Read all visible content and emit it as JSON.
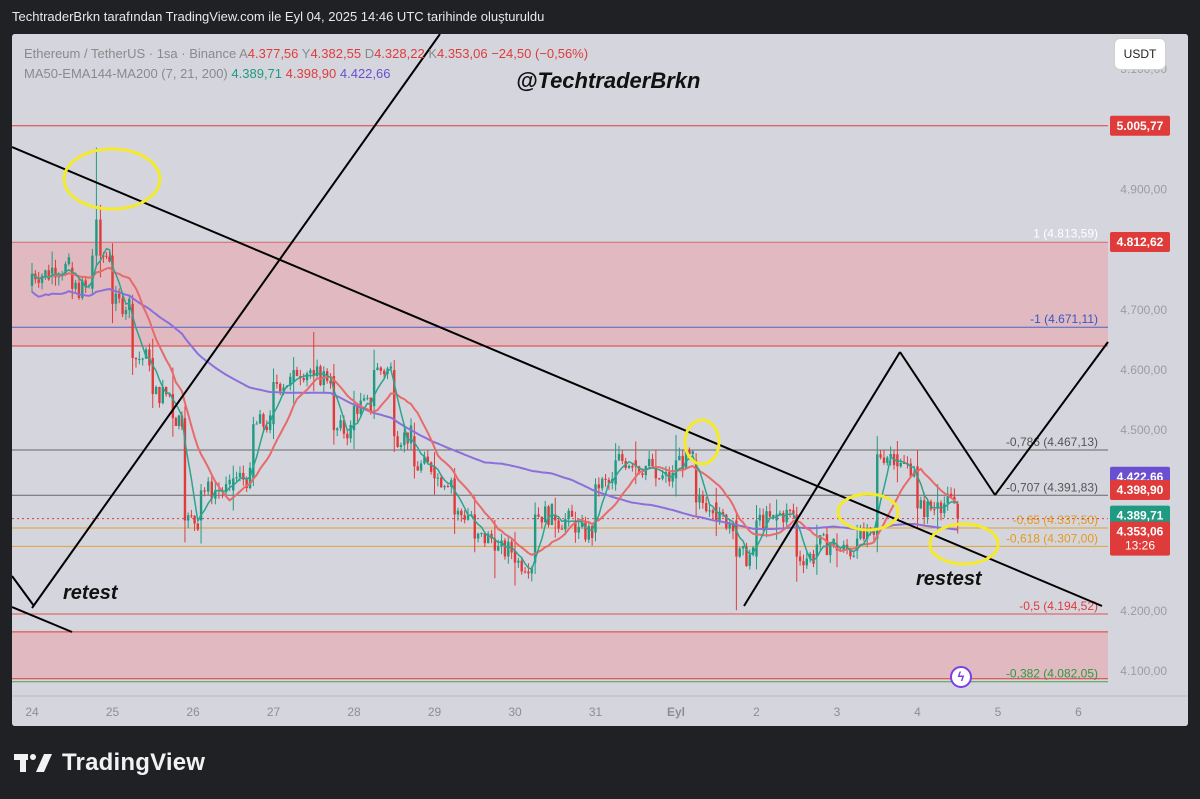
{
  "header": {
    "title": "TechtraderBrkn tarafından TradingView.com ile Eyl 04, 2025 14:46 UTC tarihinde oluşturuldu"
  },
  "legend": {
    "symbol": "Ethereum / TetherUS · 1sa · Binance",
    "ohlc": [
      {
        "k": "A",
        "v": "4.377,56"
      },
      {
        "k": "Y",
        "v": "4.382,55"
      },
      {
        "k": "D",
        "v": "4.328,22"
      },
      {
        "k": "K",
        "v": "4.353,06"
      }
    ],
    "change": "−24,50 (−0,56%)",
    "ma_label": "MA50-EMA144-MA200 (7, 21, 200)",
    "ma_values": [
      "4.389,71",
      "4.398,90",
      "4.422,66"
    ]
  },
  "currency_button": "USDT",
  "watermark": "@TechtraderBrkn",
  "footer": {
    "brand": "TradingView"
  },
  "colors": {
    "background": "#d5d6dd",
    "up": "#1f9a83",
    "down": "#e03b3b",
    "ma_fast": "#2aa48f",
    "ma_mid": "#e86a6a",
    "ma_slow": "#8c6fd8",
    "zone": "#e8a6ae",
    "annotation": "#f4ea2a"
  },
  "chart_data": {
    "type": "candlestick",
    "ylim": [
      4070,
      5150
    ],
    "y_ticks": [
      {
        "value": 5100,
        "label": "5.100,00"
      },
      {
        "value": 4900,
        "label": "4.900,00"
      },
      {
        "value": 4700,
        "label": "4.700,00"
      },
      {
        "value": 4600,
        "label": "4.600,00"
      },
      {
        "value": 4500,
        "label": "4.500,00"
      },
      {
        "value": 4300,
        "label": "4.300,00"
      },
      {
        "value": 4200,
        "label": "4.200,00"
      },
      {
        "value": 4100,
        "label": "4.100,00"
      }
    ],
    "x_ticks": [
      {
        "day": 0,
        "label": "24"
      },
      {
        "day": 1,
        "label": "25"
      },
      {
        "day": 2,
        "label": "26"
      },
      {
        "day": 3,
        "label": "27"
      },
      {
        "day": 4,
        "label": "28"
      },
      {
        "day": 5,
        "label": "29"
      },
      {
        "day": 6,
        "label": "30"
      },
      {
        "day": 7,
        "label": "31"
      },
      {
        "day": 8,
        "label": "Eyl"
      },
      {
        "day": 9,
        "label": "2"
      },
      {
        "day": 10,
        "label": "3"
      },
      {
        "day": 11,
        "label": "4"
      },
      {
        "day": 12,
        "label": "5"
      },
      {
        "day": 13,
        "label": "6"
      }
    ],
    "price_badges": [
      {
        "value": 5005.77,
        "label": "5.005,77",
        "color": "#e03b3b"
      },
      {
        "value": 4812.62,
        "label": "4.812,62",
        "color": "#e03b3b"
      },
      {
        "value": 4422.66,
        "label": "4.422,66",
        "color": "#6a4fd1"
      },
      {
        "value": 4398.9,
        "label": "4.398,90",
        "color": "#e03b3b"
      },
      {
        "value": 4389.71,
        "label": "4.389,71",
        "color": "#1f9a83"
      },
      {
        "value": 4353.06,
        "label": "4.353,06",
        "color": "#e03b3b",
        "sub": "13:26"
      }
    ],
    "fib_levels": [
      {
        "value": 4813.59,
        "label": "1 (4.813,59)",
        "color": "#ffffff"
      },
      {
        "value": 4671.11,
        "label": "-1 (4.671,11)",
        "color": "#3457c9"
      },
      {
        "value": 4467.13,
        "label": "-0,786 (4.467,13)",
        "color": "#555555"
      },
      {
        "value": 4391.83,
        "label": "-0,707 (4.391,83)",
        "color": "#555555"
      },
      {
        "value": 4337.5,
        "label": "-0,65 (4.337,50)",
        "color": "#e39a1c"
      },
      {
        "value": 4307.0,
        "label": "-0,618 (4.307,00)",
        "color": "#e39a1c"
      },
      {
        "value": 4194.52,
        "label": "-0,5 (4.194,52)",
        "color": "#e03b3b"
      },
      {
        "value": 4082.05,
        "label": "-0,382 (4.082,05)",
        "color": "#2e9a3a"
      }
    ],
    "zones": [
      {
        "from": 4640,
        "to": 4812.62
      },
      {
        "from": 4087,
        "to": 4165
      }
    ],
    "resistance_line": 5005.77,
    "ohlc_key": [
      [
        0.0,
        4740,
        4770,
        4730,
        4760
      ],
      [
        0.25,
        4760,
        4790,
        4745,
        4770
      ],
      [
        0.5,
        4770,
        4775,
        4720,
        4735
      ],
      [
        0.75,
        4735,
        4800,
        4725,
        4790
      ],
      [
        0.8,
        4790,
        4960,
        4780,
        4850
      ],
      [
        0.85,
        4850,
        4870,
        4760,
        4790
      ],
      [
        1.0,
        4790,
        4800,
        4690,
        4710
      ],
      [
        1.25,
        4710,
        4720,
        4600,
        4620
      ],
      [
        1.5,
        4620,
        4640,
        4540,
        4560
      ],
      [
        1.75,
        4560,
        4600,
        4500,
        4520
      ],
      [
        1.9,
        4520,
        4530,
        4320,
        4350
      ],
      [
        2.1,
        4350,
        4410,
        4320,
        4400
      ],
      [
        2.5,
        4400,
        4440,
        4380,
        4420
      ],
      [
        2.75,
        4420,
        4520,
        4410,
        4510
      ],
      [
        3.0,
        4510,
        4600,
        4490,
        4580
      ],
      [
        3.25,
        4580,
        4620,
        4550,
        4600
      ],
      [
        3.5,
        4600,
        4650,
        4570,
        4590
      ],
      [
        3.75,
        4590,
        4600,
        4480,
        4500
      ],
      [
        4.0,
        4500,
        4560,
        4470,
        4540
      ],
      [
        4.25,
        4540,
        4620,
        4530,
        4600
      ],
      [
        4.5,
        4600,
        4610,
        4470,
        4490
      ],
      [
        4.75,
        4490,
        4500,
        4420,
        4440
      ],
      [
        5.0,
        4440,
        4460,
        4400,
        4420
      ],
      [
        5.25,
        4420,
        4430,
        4340,
        4360
      ],
      [
        5.5,
        4360,
        4380,
        4300,
        4320
      ],
      [
        5.75,
        4320,
        4340,
        4260,
        4300
      ],
      [
        6.0,
        4300,
        4320,
        4250,
        4280
      ],
      [
        6.25,
        4280,
        4370,
        4270,
        4360
      ],
      [
        6.5,
        4360,
        4380,
        4330,
        4350
      ],
      [
        6.75,
        4350,
        4360,
        4320,
        4330
      ],
      [
        7.0,
        4330,
        4420,
        4320,
        4410
      ],
      [
        7.25,
        4410,
        4470,
        4400,
        4450
      ],
      [
        7.5,
        4450,
        4480,
        4420,
        4440
      ],
      [
        7.75,
        4440,
        4460,
        4410,
        4420
      ],
      [
        8.0,
        4420,
        4480,
        4400,
        4450
      ],
      [
        8.25,
        4450,
        4460,
        4360,
        4380
      ],
      [
        8.5,
        4380,
        4400,
        4330,
        4350
      ],
      [
        8.75,
        4350,
        4360,
        4210,
        4290
      ],
      [
        9.0,
        4290,
        4370,
        4280,
        4350
      ],
      [
        9.25,
        4350,
        4380,
        4330,
        4360
      ],
      [
        9.5,
        4360,
        4370,
        4260,
        4290
      ],
      [
        9.75,
        4290,
        4330,
        4270,
        4310
      ],
      [
        10.0,
        4310,
        4320,
        4280,
        4300
      ],
      [
        10.25,
        4300,
        4340,
        4290,
        4320
      ],
      [
        10.5,
        4320,
        4480,
        4310,
        4460
      ],
      [
        10.75,
        4460,
        4480,
        4420,
        4440
      ],
      [
        11.0,
        4440,
        4460,
        4350,
        4370
      ],
      [
        11.25,
        4370,
        4400,
        4340,
        4380
      ],
      [
        11.5,
        4377.56,
        4382.55,
        4328.22,
        4353.06
      ]
    ]
  },
  "annotations": {
    "retest_left": "retest",
    "retest_right": "restest"
  }
}
